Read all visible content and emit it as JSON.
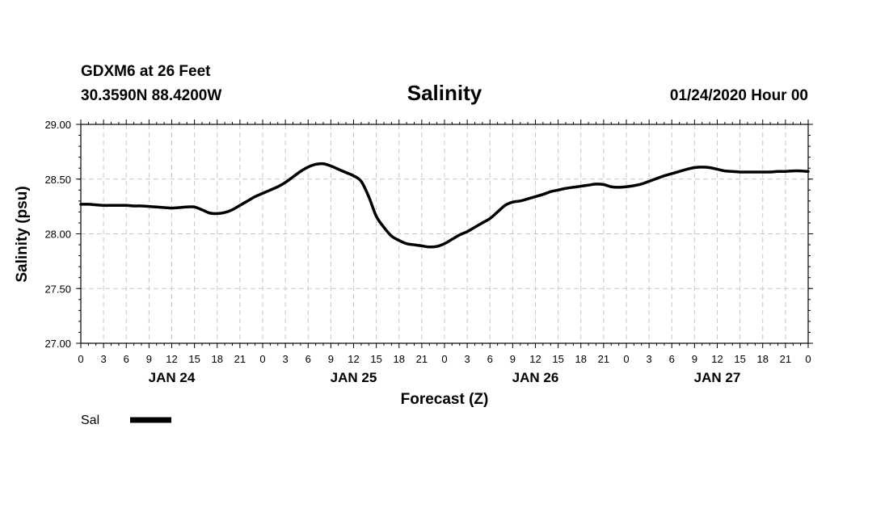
{
  "header": {
    "station_line": "GDXM6 at 26 Feet",
    "coords_line": "30.3590N 88.4200W",
    "title": "Salinity",
    "issued": "01/24/2020 Hour 00"
  },
  "chart_data": {
    "type": "line",
    "title": "Salinity",
    "xlabel": "Forecast (Z)",
    "ylabel": "Salinity (psu)",
    "ylim": [
      27.0,
      29.0
    ],
    "yticks": [
      "27.00",
      "27.50",
      "28.00",
      "28.50",
      "29.00"
    ],
    "xlim_hours": [
      0,
      96
    ],
    "xticks": [
      "0",
      "3",
      "6",
      "9",
      "12",
      "15",
      "18",
      "21",
      "0",
      "3",
      "6",
      "9",
      "12",
      "15",
      "18",
      "21",
      "0",
      "3",
      "6",
      "9",
      "12",
      "15",
      "18",
      "21",
      "0",
      "3",
      "6",
      "9",
      "12",
      "15",
      "18",
      "21",
      "0"
    ],
    "day_labels": [
      {
        "label": "JAN 24",
        "hour": 12
      },
      {
        "label": "JAN 25",
        "hour": 36
      },
      {
        "label": "JAN 26",
        "hour": 60
      },
      {
        "label": "JAN 27",
        "hour": 84
      }
    ],
    "grid": true,
    "legend": [
      {
        "name": "Sal",
        "color": "#000000"
      }
    ],
    "series": [
      {
        "name": "Sal",
        "color": "#000000",
        "x": [
          0,
          1,
          2,
          3,
          4,
          5,
          6,
          7,
          8,
          9,
          10,
          11,
          12,
          13,
          14,
          15,
          16,
          17,
          18,
          19,
          20,
          21,
          22,
          23,
          24,
          25,
          26,
          27,
          28,
          29,
          30,
          31,
          32,
          33,
          34,
          35,
          36,
          37,
          38,
          39,
          40,
          41,
          42,
          43,
          44,
          45,
          46,
          47,
          48,
          49,
          50,
          51,
          52,
          53,
          54,
          55,
          56,
          57,
          58,
          59,
          60,
          61,
          62,
          63,
          64,
          65,
          66,
          67,
          68,
          69,
          70,
          71,
          72,
          73,
          74,
          75,
          76,
          77,
          78,
          79,
          80,
          81,
          82,
          83,
          84,
          85,
          86,
          87,
          88,
          89,
          90,
          91,
          92,
          93,
          94,
          95,
          96
        ],
        "values": [
          28.27,
          28.27,
          28.265,
          28.26,
          28.26,
          28.26,
          28.26,
          28.255,
          28.255,
          28.25,
          28.245,
          28.24,
          28.235,
          28.24,
          28.245,
          28.245,
          28.22,
          28.19,
          28.185,
          28.195,
          28.22,
          28.26,
          28.3,
          28.34,
          28.37,
          28.4,
          28.43,
          28.47,
          28.52,
          28.57,
          28.61,
          28.635,
          28.64,
          28.62,
          28.59,
          28.56,
          28.53,
          28.48,
          28.34,
          28.16,
          28.06,
          27.98,
          27.94,
          27.91,
          27.9,
          27.89,
          27.88,
          27.885,
          27.91,
          27.95,
          27.99,
          28.02,
          28.06,
          28.1,
          28.14,
          28.2,
          28.26,
          28.29,
          28.3,
          28.32,
          28.34,
          28.36,
          28.385,
          28.4,
          28.415,
          28.425,
          28.435,
          28.445,
          28.455,
          28.45,
          28.43,
          28.425,
          28.43,
          28.44,
          28.455,
          28.48,
          28.505,
          28.53,
          28.55,
          28.57,
          28.59,
          28.605,
          28.61,
          28.605,
          28.59,
          28.575,
          28.57,
          28.565,
          28.565,
          28.565,
          28.565,
          28.565,
          28.57,
          28.57,
          28.575,
          28.575,
          28.57
        ]
      }
    ]
  }
}
